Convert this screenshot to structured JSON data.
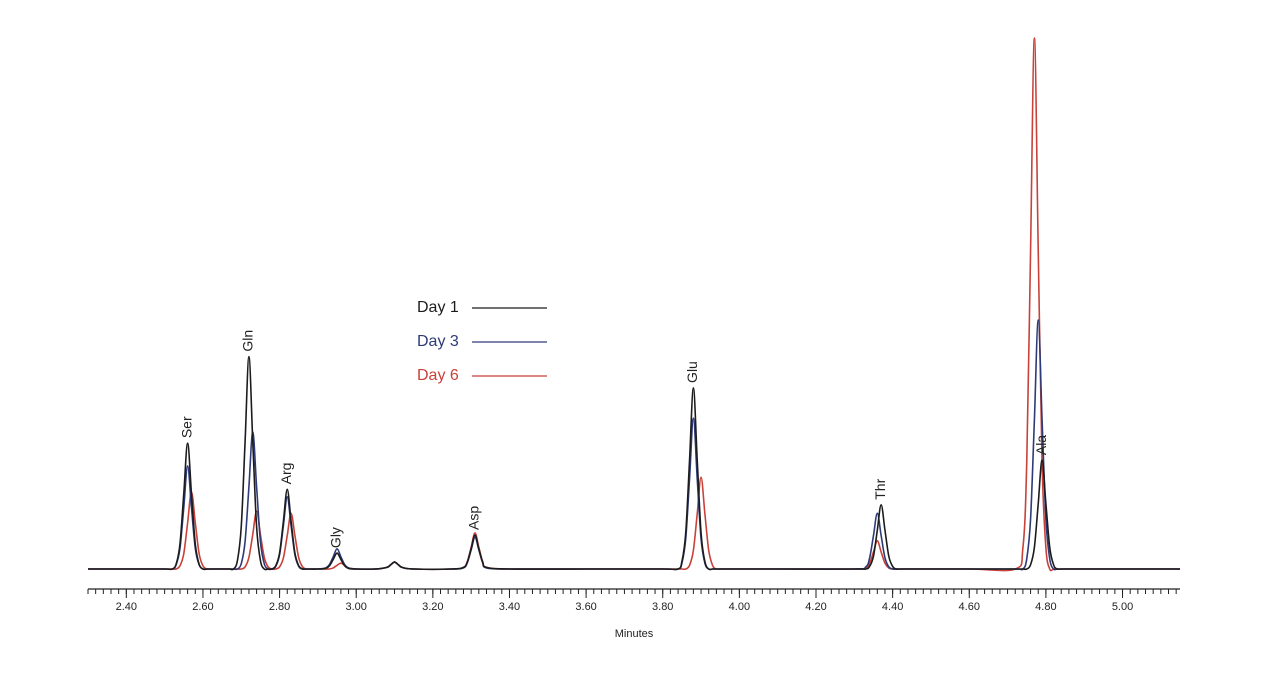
{
  "chart_data": {
    "type": "line",
    "xlabel": "Minutes",
    "xlim": [
      2.3,
      5.15
    ],
    "ylim": [
      0,
      100
    ],
    "xminor": 0.02,
    "xticks": [
      {
        "value": 2.4,
        "label": "2.40"
      },
      {
        "value": 2.6,
        "label": "2.60"
      },
      {
        "value": 2.8,
        "label": "2.80"
      },
      {
        "value": 3.0,
        "label": "3.00"
      },
      {
        "value": 3.2,
        "label": "3.20"
      },
      {
        "value": 3.4,
        "label": "3.40"
      },
      {
        "value": 3.6,
        "label": "3.60"
      },
      {
        "value": 3.8,
        "label": "3.80"
      },
      {
        "value": 4.0,
        "label": "4.00"
      },
      {
        "value": 4.2,
        "label": "4.20"
      },
      {
        "value": 4.4,
        "label": "4.40"
      },
      {
        "value": 4.6,
        "label": "4.60"
      },
      {
        "value": 4.8,
        "label": "4.80"
      },
      {
        "value": 5.0,
        "label": "5.00"
      }
    ],
    "annotations": [
      {
        "text": "Ser",
        "x": 2.56
      },
      {
        "text": "Gln",
        "x": 2.72
      },
      {
        "text": "Arg",
        "x": 2.82
      },
      {
        "text": "Gly",
        "x": 2.95
      },
      {
        "text": "Asp",
        "x": 3.31
      },
      {
        "text": "Glu",
        "x": 3.88
      },
      {
        "text": "Thr",
        "x": 4.37
      },
      {
        "text": "Ala",
        "x": 4.79
      }
    ],
    "x": [
      2.3,
      2.4,
      2.5,
      2.52,
      2.53,
      2.54,
      2.55,
      2.56,
      2.57,
      2.58,
      2.59,
      2.6,
      2.61,
      2.62,
      2.63,
      2.64,
      2.65,
      2.66,
      2.67,
      2.68,
      2.69,
      2.7,
      2.71,
      2.72,
      2.73,
      2.74,
      2.75,
      2.76,
      2.77,
      2.78,
      2.79,
      2.8,
      2.81,
      2.82,
      2.83,
      2.84,
      2.85,
      2.86,
      2.87,
      2.88,
      2.9,
      2.92,
      2.93,
      2.94,
      2.95,
      2.96,
      2.97,
      2.98,
      3.0,
      3.05,
      3.08,
      3.09,
      3.1,
      3.11,
      3.12,
      3.15,
      3.25,
      3.28,
      3.29,
      3.3,
      3.31,
      3.32,
      3.33,
      3.34,
      3.4,
      3.6,
      3.8,
      3.84,
      3.85,
      3.86,
      3.87,
      3.88,
      3.89,
      3.9,
      3.91,
      3.92,
      3.93,
      3.94,
      3.96,
      4.1,
      4.3,
      4.33,
      4.34,
      4.35,
      4.36,
      4.37,
      4.38,
      4.39,
      4.4,
      4.41,
      4.43,
      4.6,
      4.72,
      4.74,
      4.75,
      4.76,
      4.77,
      4.78,
      4.79,
      4.8,
      4.81,
      4.82,
      4.83,
      4.85,
      5.0,
      5.15
    ],
    "series": [
      {
        "name": "Day 1",
        "color": "#1c1c1c",
        "values": [
          0,
          0,
          0,
          0,
          0.9,
          4.7,
          14.2,
          23.7,
          14.2,
          4.7,
          0.9,
          0,
          0,
          0,
          0,
          0,
          0,
          0,
          0,
          0,
          1.6,
          8,
          24,
          40,
          24,
          8,
          1.6,
          0,
          0,
          0,
          0.6,
          3,
          9,
          15,
          9,
          3,
          0.6,
          0,
          0,
          0,
          0,
          0.1,
          0.6,
          1.8,
          3,
          1.8,
          0.6,
          0.1,
          0,
          0,
          0.3,
          0.8,
          1.3,
          0.8,
          0.3,
          0,
          0,
          0.3,
          1.3,
          3.8,
          6.4,
          3.8,
          1.3,
          0.3,
          0,
          0,
          0,
          0,
          1.4,
          6.8,
          20.5,
          34.1,
          20.5,
          6.8,
          1.4,
          0,
          0,
          0,
          0,
          0,
          0,
          0,
          0.5,
          2.4,
          7.3,
          12.1,
          7.3,
          2.4,
          0.5,
          0,
          0,
          0,
          0,
          0,
          0,
          0.8,
          4.1,
          12.3,
          20.5,
          12.3,
          4.1,
          0.8,
          0,
          0,
          0,
          0
        ]
      },
      {
        "name": "Day 3",
        "color": "#2e3b78",
        "values": [
          0,
          0,
          0,
          0,
          0.8,
          3.9,
          11.6,
          19.4,
          11.6,
          3.9,
          0.8,
          0,
          0,
          0,
          0,
          0,
          0,
          0,
          0,
          0,
          0,
          1.0,
          5.2,
          15.5,
          25.8,
          15.5,
          5.2,
          1.0,
          0,
          0,
          0.5,
          2.7,
          8.2,
          13.6,
          8.2,
          2.7,
          0.5,
          0,
          0,
          0,
          0,
          0.2,
          0.8,
          2.3,
          3.8,
          2.3,
          0.8,
          0.2,
          0,
          0,
          0.3,
          0.8,
          1.3,
          0.8,
          0.3,
          0,
          0,
          0.2,
          1.2,
          3.6,
          6,
          3.6,
          1.2,
          0.2,
          0,
          0,
          0,
          0,
          1.1,
          5.7,
          17,
          28.4,
          17,
          5.7,
          1.1,
          0,
          0,
          0,
          0,
          0,
          0,
          0.4,
          2.1,
          6.3,
          10.5,
          6.3,
          2.1,
          0.4,
          0,
          0,
          0,
          0,
          0,
          0,
          1.9,
          9.4,
          28.1,
          46.9,
          28.1,
          9.4,
          1.9,
          0,
          0,
          0,
          0,
          0
        ]
      },
      {
        "name": "Day 6",
        "color": "#c8423a",
        "values": [
          0,
          0,
          0,
          0,
          0,
          0.6,
          2.9,
          8.7,
          14.5,
          8.7,
          2.9,
          0.6,
          0,
          0,
          0,
          0,
          0,
          0,
          0,
          0,
          0,
          0,
          0.4,
          2.2,
          6.5,
          10.9,
          6.5,
          2.2,
          0.4,
          0,
          0,
          0.4,
          2.1,
          6.3,
          10.5,
          6.3,
          2.1,
          0.4,
          0,
          0,
          0,
          0,
          0,
          0.2,
          0.7,
          1.1,
          0.7,
          0.2,
          0,
          0,
          0.3,
          0.8,
          1.3,
          0.8,
          0.3,
          0,
          0,
          0.3,
          1.4,
          4.1,
          6.8,
          4.1,
          1.4,
          0.3,
          0,
          0,
          0,
          0,
          0,
          0,
          0.7,
          3.5,
          10.4,
          17.3,
          10.4,
          3.5,
          0.7,
          0,
          0,
          0,
          0,
          0.2,
          1.1,
          3.2,
          5.3,
          3.2,
          1.1,
          0.2,
          0,
          0,
          0,
          0,
          0,
          4,
          20,
          60,
          100,
          60,
          20,
          4,
          0,
          0,
          0,
          0,
          0,
          0
        ]
      }
    ]
  }
}
